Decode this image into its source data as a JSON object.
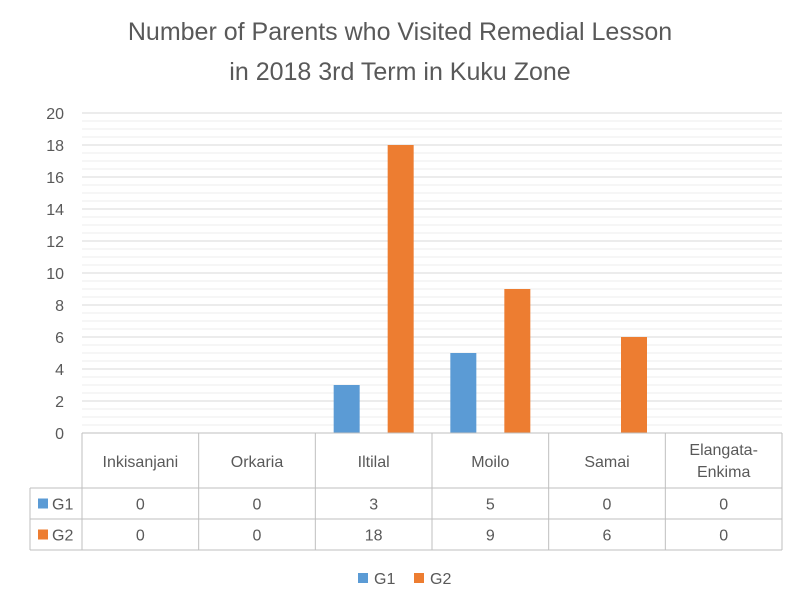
{
  "chart_data": {
    "type": "bar",
    "title_lines": [
      "Number of Parents who Visited Remedial Lesson",
      "in 2018 3rd Term in Kuku Zone"
    ],
    "categories": [
      [
        "Inkisanjani"
      ],
      [
        "Orkaria"
      ],
      [
        "Iltilal"
      ],
      [
        "Moilo"
      ],
      [
        "Samai"
      ],
      [
        "Elangata-",
        "Enkima"
      ]
    ],
    "series": [
      {
        "name": "G1",
        "values": [
          0,
          0,
          3,
          5,
          0,
          0
        ],
        "color": "#5B9BD5"
      },
      {
        "name": "G2",
        "values": [
          0,
          0,
          18,
          9,
          6,
          0
        ],
        "color": "#ED7D31"
      }
    ],
    "ylim": [
      0,
      20
    ],
    "yticks": [
      0,
      2,
      4,
      6,
      8,
      10,
      12,
      14,
      16,
      18,
      20
    ],
    "xlabel": "",
    "ylabel": "",
    "grid": true,
    "data_table": true,
    "legend_position": "bottom"
  }
}
